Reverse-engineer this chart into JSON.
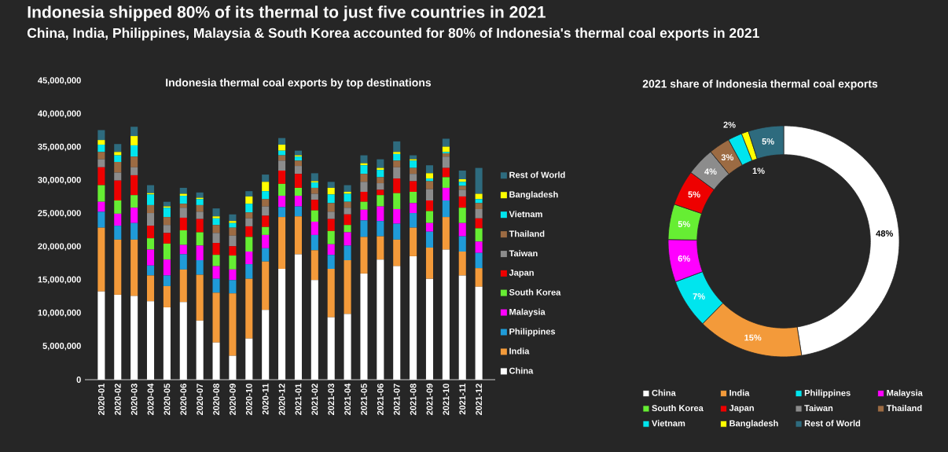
{
  "chart_data": [
    {
      "type": "bar",
      "stacked": true,
      "title": "Indonesia thermal coal exports by top destinations",
      "annotations": [
        "Indonesia shipped 80% of its thermal to just five countries in 2021",
        "China, India, Philippines, Malaysia & South Korea accounted for 80% of Indonesia's thermal coal exports in 2021"
      ],
      "categories": [
        "2020-01",
        "2020-02",
        "2020-03",
        "2020-04",
        "2020-05",
        "2020-06",
        "2020-07",
        "2020-08",
        "2020-09",
        "2020-10",
        "2020-11",
        "2020-12",
        "2021-01",
        "2021-02",
        "2021-03",
        "2021-04",
        "2021-05",
        "2021-06",
        "2021-07",
        "2021-08",
        "2021-09",
        "2021-10",
        "2021-11",
        "2021-12"
      ],
      "ylim": [
        0,
        45000000
      ],
      "yticks": [
        0,
        {
          "value": 5000000,
          "label": "5,000,000"
        },
        {
          "value": 10000000,
          "label": "10,000,000"
        },
        {
          "value": 15000000,
          "label": "15,000,000"
        },
        {
          "value": 20000000,
          "label": "20,000,000"
        },
        {
          "value": 25000000,
          "label": "25,000,000"
        },
        {
          "value": 30000000,
          "label": "30,000,000"
        },
        {
          "value": 35000000,
          "label": "35,000,000"
        },
        {
          "value": 40000000,
          "label": "40,000,000"
        },
        {
          "value": 45000000,
          "label": "45,000,000"
        }
      ],
      "legend": "right",
      "series": [
        {
          "name": "China",
          "color": "#ffffff",
          "values": [
            13300000,
            12800000,
            12600000,
            11800000,
            10900000,
            11700000,
            8900000,
            5600000,
            3600000,
            6200000,
            10500000,
            16700000,
            18900000,
            15000000,
            9400000,
            9900000,
            16000000,
            18100000,
            17100000,
            18600000,
            15200000,
            19600000,
            15700000,
            14000000
          ]
        },
        {
          "name": "India",
          "color": "#f39a3a",
          "values": [
            9600000,
            8300000,
            8500000,
            3900000,
            3200000,
            4900000,
            6900000,
            7500000,
            9400000,
            9000000,
            7300000,
            7800000,
            5700000,
            4500000,
            7300000,
            8100000,
            5500000,
            3500000,
            4000000,
            4300000,
            4700000,
            4900000,
            3600000,
            2800000
          ]
        },
        {
          "name": "Philippines",
          "color": "#1f9bd8",
          "values": [
            2400000,
            2100000,
            2500000,
            1500000,
            1600000,
            2300000,
            2200000,
            2100000,
            2000000,
            2200000,
            2000000,
            1500000,
            1500000,
            2300000,
            2100000,
            2200000,
            2500000,
            2300000,
            2400000,
            2200000,
            2400000,
            2500000,
            2300000,
            2300000
          ]
        },
        {
          "name": "Malaysia",
          "color": "#ff00ff",
          "values": [
            1500000,
            1800000,
            2300000,
            2400000,
            2400000,
            1400000,
            2200000,
            1900000,
            1600000,
            1900000,
            2000000,
            1700000,
            1600000,
            2000000,
            1600000,
            2000000,
            1600000,
            2200000,
            2200000,
            1500000,
            1300000,
            1900000,
            2000000,
            1700000
          ]
        },
        {
          "name": "South Korea",
          "color": "#66ee33",
          "values": [
            2500000,
            2000000,
            1900000,
            1700000,
            2400000,
            2200000,
            2000000,
            1700000,
            2100000,
            2200000,
            1200000,
            1800000,
            1200000,
            1700000,
            2000000,
            1100000,
            1200000,
            1700000,
            2400000,
            1700000,
            1800000,
            1600000,
            2300000,
            2000000
          ]
        },
        {
          "name": "Japan",
          "color": "#ee0000",
          "values": [
            2700000,
            3000000,
            3000000,
            1900000,
            1600000,
            1900000,
            2000000,
            1800000,
            1400000,
            1600000,
            1700000,
            2000000,
            2100000,
            1600000,
            1800000,
            1600000,
            1500000,
            800000,
            2200000,
            1600000,
            1600000,
            1400000,
            1700000,
            1500000
          ]
        },
        {
          "name": "Taiwan",
          "color": "#8c8c8c",
          "values": [
            1200000,
            1200000,
            1200000,
            1900000,
            1200000,
            1500000,
            1100000,
            1500000,
            1600000,
            1200000,
            1400000,
            1500000,
            1200000,
            900000,
            1100000,
            1000000,
            1500000,
            1000000,
            1700000,
            1100000,
            1700000,
            1700000,
            1000000,
            1400000
          ]
        },
        {
          "name": "Thailand",
          "color": "#9c6b43",
          "values": [
            1100000,
            1600000,
            1600000,
            1200000,
            1200000,
            600000,
            1000000,
            1200000,
            1200000,
            900000,
            1100000,
            800000,
            800000,
            900000,
            1300000,
            900000,
            1200000,
            900000,
            1000000,
            900000,
            1200000,
            500000,
            600000,
            900000
          ]
        },
        {
          "name": "Vietnam",
          "color": "#00e5ee",
          "values": [
            1100000,
            1000000,
            1700000,
            1600000,
            1400000,
            1200000,
            900000,
            1000000,
            700000,
            1300000,
            1200000,
            700000,
            600000,
            800000,
            1300000,
            1200000,
            1300000,
            1100000,
            1000000,
            1100000,
            400000,
            200000,
            600000,
            600000
          ]
        },
        {
          "name": "Bangladesh",
          "color": "#ffff00",
          "values": [
            700000,
            500000,
            1400000,
            200000,
            200000,
            300000,
            200000,
            300000,
            300000,
            1100000,
            1400000,
            900000,
            200000,
            200000,
            1000000,
            300000,
            300000,
            300000,
            300000,
            200000,
            800000,
            800000,
            400000,
            800000
          ]
        },
        {
          "name": "Rest of World",
          "color": "#2e6b7e",
          "values": [
            1500000,
            1200000,
            1400000,
            1200000,
            700000,
            900000,
            800000,
            1200000,
            1000000,
            800000,
            1100000,
            1000000,
            700000,
            1200000,
            900000,
            1000000,
            1200000,
            1300000,
            1600000,
            600000,
            1200000,
            1200000,
            1300000,
            3900000
          ]
        }
      ]
    },
    {
      "type": "donut",
      "title": "2021 share of Indonesia thermal coal exports",
      "legend": "bottom",
      "categories": [
        "China",
        "India",
        "Philippines",
        "Malaysia",
        "South Korea",
        "Japan",
        "Taiwan",
        "Thailand",
        "Vietnam",
        "Bangladesh",
        "Rest of World"
      ],
      "values": [
        48,
        15,
        7,
        6,
        5,
        5,
        4,
        3,
        2,
        1,
        5
      ],
      "colors": [
        "#ffffff",
        "#f39a3a",
        "#00e5ee",
        "#ff00ff",
        "#66ee33",
        "#ee0000",
        "#8c8c8c",
        "#9c6b43",
        "#00e5ee",
        "#ffff00",
        "#2e6b7e"
      ],
      "value_labels": [
        "48%",
        "15%",
        "7%",
        "6%",
        "5%",
        "5%",
        "4%",
        "3%",
        "2%",
        "1%",
        "5%"
      ]
    }
  ]
}
